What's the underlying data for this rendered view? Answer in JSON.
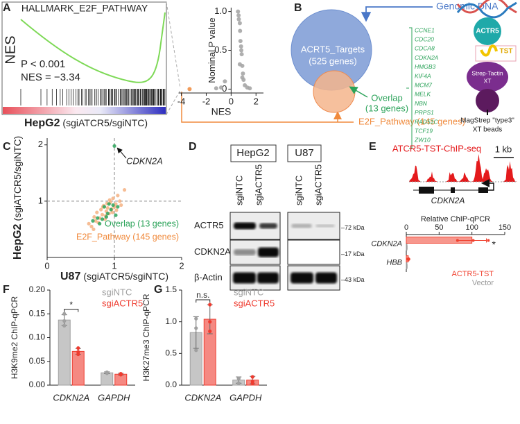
{
  "figure": {
    "A": {
      "letter": "A",
      "gsea_title": "HALLMARK_E2F_PATHWAY",
      "gsea_y_label": "NES",
      "p_value": "P < 0.001",
      "nes": "NES = −3.34",
      "cell_line": "HepG2",
      "comparison": "(sgiATCR5/sgiNTC)"
    },
    "B": {
      "letter": "B",
      "targets_name": "ACRT5_Targets",
      "targets_count": "(525 genes)",
      "genomic_dna": "Genomic DNA",
      "overlap_name": "Overlap",
      "overlap_count": "(13 genes)",
      "e2f_label": "E2F_Pathway (145 genes)",
      "genes": [
        "CCNE1",
        "CDC20",
        "CDCA8",
        "CDKN2A",
        "HMGB3",
        "KIF4A",
        "MCM7",
        "MELK",
        "NBN",
        "PRPS1",
        "RAD51C",
        "TCF19",
        "ZW10"
      ],
      "actr5": "ACTR5",
      "tst": "TST",
      "strep_tactin": [
        "Strep-Tactin",
        "XT"
      ],
      "beads": [
        "MagStrep \"type3\"",
        "XT beads"
      ]
    },
    "C": {
      "letter": "C"
    },
    "D": {
      "letter": "D",
      "cell_lines": [
        "HepG2",
        "U87"
      ],
      "lanes": [
        "sgiNTC",
        "sgiACTR5",
        "sgiNTC",
        "sgiACTR5"
      ],
      "proteins": [
        "ACTR5",
        "CDKN2A",
        "β-Actin"
      ],
      "sizes": [
        "–72 kDa",
        "–17 kDa",
        "–43 kDa"
      ]
    },
    "E": {
      "letter": "E",
      "track_title": "ATCR5-TST-ChIP-seq",
      "scale": "1 kb",
      "gene": "CDKN2A"
    },
    "F": {
      "letter": "F"
    },
    "G": {
      "letter": "G"
    }
  },
  "chart_data": [
    {
      "type": "scatter",
      "axis_crossing": "origin",
      "x_label": "NES",
      "y_label": "Nominal P value",
      "xlim": [
        -4.2,
        2.6
      ],
      "ylim": [
        -0.05,
        1.05
      ],
      "xticks": [
        -4,
        -2,
        0,
        2
      ],
      "yticks": [
        0,
        0.5,
        {
          "value": 1,
          "label": "1.0"
        }
      ],
      "series": [
        {
          "color": "#a6a6a6",
          "x": [
            0.55,
            0.6,
            0.62,
            0.7,
            0.72,
            0.75,
            0.8,
            0.82,
            0.85,
            0.9,
            0.95,
            1.0,
            1.1,
            1.3,
            1.5,
            -0.5,
            -1.2,
            -0.8,
            0.7,
            0.9
          ],
          "values": [
            1.0,
            0.95,
            0.9,
            0.85,
            0.75,
            0.62,
            0.55,
            0.5,
            0.45,
            0.3,
            0.2,
            0.12,
            0.05,
            0.02,
            0.01,
            0.1,
            0.01,
            0.02,
            0.32,
            0.15
          ]
        },
        {
          "color": "#f08a3c",
          "x": [
            -3.34
          ],
          "values": [
            0
          ]
        }
      ]
    },
    {
      "type": "scatter",
      "axis_crossing": "left",
      "x_label": [
        "U87",
        "(sgiATCR5/sgiNTC)"
      ],
      "y_label": [
        "HepG2",
        "(sgiATCR5/sgiNTC)"
      ],
      "xlim": [
        0,
        2
      ],
      "ylim": [
        0,
        2.12
      ],
      "xticks": [
        0,
        1,
        2
      ],
      "yticks": [
        1,
        2
      ],
      "reference_x": 1,
      "reference_y": 1,
      "legend": "lower right",
      "annotation": "CDKN2A",
      "series": [
        {
          "name": "E2F_Pathway (145 genes)",
          "color": "#f4b183",
          "x": [
            0.62,
            0.66,
            0.7,
            0.72,
            0.74,
            0.78,
            0.8,
            0.82,
            0.84,
            0.86,
            0.88,
            0.9,
            0.92,
            0.94,
            0.96,
            0.98,
            1.0,
            1.02,
            1.05,
            1.08,
            1.1,
            1.15,
            0.76,
            0.83,
            0.87,
            0.93,
            0.97,
            1.03,
            0.69,
            0.89
          ],
          "values": [
            0.6,
            0.55,
            0.72,
            0.65,
            0.8,
            0.7,
            0.85,
            0.76,
            0.92,
            0.68,
            0.82,
            0.88,
            0.78,
            0.98,
            0.86,
            1.05,
            0.9,
            0.95,
            1.1,
            1.0,
            0.93,
            1.2,
            0.62,
            0.9,
            0.74,
            1.02,
            0.8,
            0.84,
            0.5,
            0.96
          ]
        },
        {
          "name": "Overlap (13 genes)",
          "color": "#2ca35a",
          "x": [
            1.0,
            0.98,
            0.95,
            0.9,
            0.85,
            0.75,
            0.68,
            0.78,
            1.02,
            0.88,
            0.92,
            1.05,
            0.82
          ],
          "values": [
            1.98,
            0.93,
            0.85,
            0.78,
            0.9,
            0.7,
            0.65,
            0.6,
            0.75,
            0.72,
            0.95,
            0.9,
            0.68
          ]
        }
      ]
    },
    {
      "type": "bar",
      "orientation": "horizontal",
      "title": "Relative ChIP-qPCR",
      "categories": [
        "CDKN2A",
        "HBB"
      ],
      "xlim": [
        0,
        150
      ],
      "xticks": [
        0,
        50,
        100,
        150
      ],
      "annotation": "*",
      "series": [
        {
          "name": "ACTR5-TST",
          "color": "#f0412f",
          "values": [
            100,
            3
          ],
          "errors": [
            22,
            1
          ],
          "points": [
            [
              78,
              102,
              125
            ],
            [
              2,
              3,
              4
            ]
          ]
        },
        {
          "name": "Vector",
          "color": "#999999",
          "values": [
            1,
            1
          ],
          "errors": [
            0.3,
            0.3
          ]
        }
      ]
    },
    {
      "type": "bar",
      "y_label": "H3K9me2 ChIP-qPCR",
      "categories": [
        "CDKN2A",
        "GAPDH"
      ],
      "ylim": [
        0,
        0.2
      ],
      "yticks": [
        {
          "value": 0,
          "label": "0.00"
        },
        0.05,
        {
          "value": 0.1,
          "label": "0.10"
        },
        0.15,
        {
          "value": 0.2,
          "label": "0.20"
        }
      ],
      "annotation": "*",
      "series": [
        {
          "name": "sgiNTC",
          "color": "#a0a0a0",
          "values": [
            0.137,
            0.026
          ],
          "errors": [
            0.011,
            0.002
          ],
          "points": [
            [
              0.125,
              0.135,
              0.15
            ],
            [
              0.025,
              0.027,
              0.027
            ]
          ]
        },
        {
          "name": "sgiACTR5",
          "color": "#ee3b2f",
          "values": [
            0.071,
            0.023
          ],
          "errors": [
            0.006,
            0.002
          ],
          "points": [
            [
              0.065,
              0.07,
              0.078
            ],
            [
              0.022,
              0.023,
              0.024
            ]
          ]
        }
      ]
    },
    {
      "type": "bar",
      "y_label": "H3K27me3 ChIP-qPCR",
      "categories": [
        "CDKN2A",
        "GAPDH"
      ],
      "ylim": [
        0,
        1.5
      ],
      "yticks": [
        {
          "value": 0,
          "label": "0.0"
        },
        0.5,
        {
          "value": 1,
          "label": "1.0"
        },
        1.5
      ],
      "annotation": "n.s.",
      "series": [
        {
          "name": "sgiNTC",
          "color": "#a0a0a0",
          "values": [
            0.83,
            0.08
          ],
          "errors": [
            0.25,
            0.05
          ],
          "points": [
            [
              0.55,
              0.9,
              1.05
            ],
            [
              0.03,
              0.1,
              0.11
            ]
          ]
        },
        {
          "name": "sgiACTR5",
          "color": "#ee3b2f",
          "values": [
            1.04,
            0.08
          ],
          "errors": [
            0.23,
            0.06
          ],
          "points": [
            [
              0.85,
              1.0,
              1.27
            ],
            [
              0.03,
              0.06,
              0.13
            ]
          ]
        }
      ]
    }
  ]
}
